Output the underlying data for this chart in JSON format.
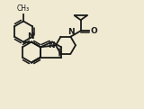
{
  "bg_color": "#f0ead2",
  "bond_color": "#1a1a1a",
  "lw": 1.3,
  "font_size": 6.5,
  "methyl_label": "CH₃",
  "N_label": "N",
  "O_label": "O"
}
